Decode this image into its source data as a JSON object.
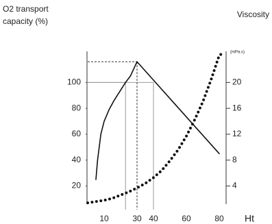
{
  "chart_data": {
    "type": "line",
    "y_label": [
      "O2 transport",
      "capacity (%)"
    ],
    "y2_label": "Viscosity",
    "y2_unit": "(mPa.s)",
    "x_label": "Ht",
    "xlim": [
      0,
      84
    ],
    "xticks": [
      10,
      30,
      40,
      60,
      80
    ],
    "ylim": [
      6,
      124
    ],
    "yticks": [
      20,
      40,
      60,
      80,
      100
    ],
    "y2lim": [
      1.2,
      24.8
    ],
    "y2ticks": [
      4,
      8,
      12,
      16,
      20
    ],
    "grid": false,
    "series": [
      {
        "color": "#111111",
        "style": "solid",
        "x": [
          5,
          6,
          8,
          10,
          13,
          16,
          20,
          23,
          26,
          30,
          80
        ],
        "values": [
          25,
          40,
          60,
          70,
          79,
          86,
          94,
          100,
          105,
          116,
          45
        ]
      },
      {
        "color": "#111111",
        "style": "dotted",
        "axis": "y2",
        "x": [
          0,
          5,
          10,
          15,
          20,
          25,
          30,
          35,
          40,
          45,
          50,
          55,
          60,
          65,
          70,
          75,
          80,
          83
        ],
        "values": [
          1.4,
          1.6,
          1.8,
          2.1,
          2.6,
          3.1,
          3.7,
          4.4,
          5.3,
          6.4,
          7.9,
          9.6,
          11.7,
          14.2,
          17.0,
          20.4,
          24.2,
          24.6
        ]
      }
    ],
    "guides": [
      {
        "x": 23,
        "y": 100,
        "style": "solid"
      },
      {
        "x": 40,
        "y": 100,
        "style": "solid"
      },
      {
        "x": 30,
        "y": 116,
        "style": "dashed"
      }
    ]
  }
}
